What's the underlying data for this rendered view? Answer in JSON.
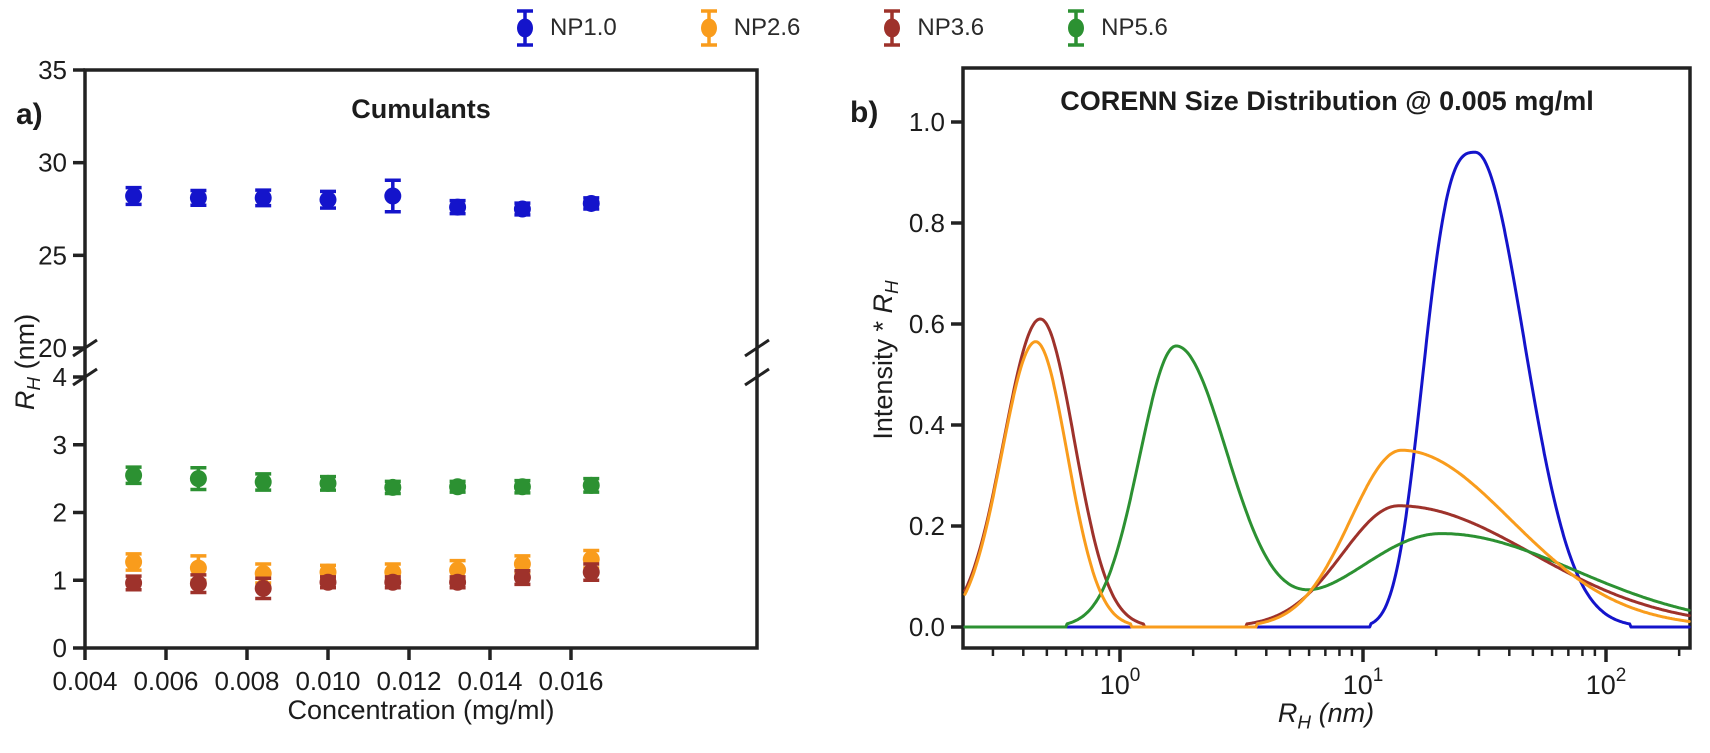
{
  "figure": {
    "panel_a_label": "a)",
    "panel_b_label": "b)",
    "background": "#ffffff",
    "text_color": "#1c1c1c",
    "legend": [
      {
        "label": "NP1.0",
        "color": "#1414cb"
      },
      {
        "label": "NP2.6",
        "color": "#f99c1c"
      },
      {
        "label": "NP3.6",
        "color": "#9e322b"
      },
      {
        "label": "NP5.6",
        "color": "#2c9132"
      }
    ]
  },
  "chart_data": [
    {
      "type": "scatter",
      "title": "Cumulants",
      "xlabel": "Concentration (mg/ml)",
      "ylabel": "R_H (nm)",
      "x_tick_labels": [
        "0.004",
        "0.006",
        "0.008",
        "0.010",
        "0.012",
        "0.014",
        "0.016"
      ],
      "xlim": [
        0.004,
        0.0206
      ],
      "y_axis_break": {
        "upper_range": [
          20,
          35
        ],
        "lower_range": [
          0,
          4
        ],
        "upper_ticks": [
          "20",
          "25",
          "30",
          "35"
        ],
        "lower_ticks": [
          "0",
          "1",
          "2",
          "3",
          "4"
        ]
      },
      "x": [
        0.0052,
        0.0068,
        0.0084,
        0.01,
        0.0116,
        0.0132,
        0.0148,
        0.0165
      ],
      "series": [
        {
          "name": "NP1.0",
          "color": "#1414cb",
          "y": [
            28.2,
            28.1,
            28.1,
            28.0,
            28.2,
            27.6,
            27.5,
            27.8
          ],
          "yerr": [
            0.45,
            0.4,
            0.42,
            0.45,
            0.85,
            0.35,
            0.32,
            0.3
          ]
        },
        {
          "name": "NP2.6",
          "color": "#f99c1c",
          "y": [
            1.27,
            1.18,
            1.1,
            1.12,
            1.12,
            1.15,
            1.24,
            1.31
          ],
          "yerr": [
            0.12,
            0.18,
            0.14,
            0.1,
            0.12,
            0.14,
            0.12,
            0.13
          ]
        },
        {
          "name": "NP3.6",
          "color": "#9e322b",
          "y": [
            0.96,
            0.95,
            0.88,
            0.97,
            0.97,
            0.97,
            1.04,
            1.12
          ],
          "yerr": [
            0.1,
            0.13,
            0.15,
            0.08,
            0.08,
            0.08,
            0.1,
            0.12
          ]
        },
        {
          "name": "NP5.6",
          "color": "#2c9132",
          "y": [
            2.55,
            2.5,
            2.45,
            2.43,
            2.37,
            2.38,
            2.38,
            2.4
          ],
          "yerr": [
            0.12,
            0.16,
            0.12,
            0.1,
            0.09,
            0.08,
            0.09,
            0.1
          ]
        }
      ]
    },
    {
      "type": "line",
      "title": "CORENN Size Distribution @ 0.005 mg/ml",
      "xlabel": "R_H (nm)",
      "ylabel": "Intensity * R_H",
      "x_scale": "log",
      "x_range": [
        0.23,
        220
      ],
      "ylim": [
        0,
        1.04
      ],
      "y_tick_labels": [
        "0.0",
        "0.2",
        "0.4",
        "0.6",
        "0.8",
        "1.0"
      ],
      "x_major_ticks": [
        {
          "value": 1,
          "base": "10",
          "exponent": "0"
        },
        {
          "value": 10,
          "base": "10",
          "exponent": "1"
        },
        {
          "value": 100,
          "base": "10",
          "exponent": "2"
        }
      ],
      "series": [
        {
          "name": "NP1.0",
          "color": "#1414cb",
          "peaks": [
            {
              "center": 29,
              "height": 0.94,
              "sigma_left": 0.2,
              "sigma_right": 0.2,
              "power_left": 3,
              "power_right": 2
            }
          ]
        },
        {
          "name": "NP3.6",
          "color": "#9e322b",
          "peaks": [
            {
              "center": 0.47,
              "height": 0.61,
              "sigma_left": 0.15,
              "sigma_right": 0.14
            },
            {
              "center": 14.0,
              "height": 0.24,
              "sigma_left": 0.23,
              "sigma_right": 0.55
            }
          ]
        },
        {
          "name": "NP5.6",
          "color": "#2c9132",
          "peaks": [
            {
              "center": 1.7,
              "height": 0.555,
              "sigma_left": 0.15,
              "sigma_right": 0.21
            },
            {
              "center": 21.0,
              "height": 0.185,
              "sigma_left": 0.35,
              "sigma_right": 0.55
            }
          ]
        },
        {
          "name": "NP2.6",
          "color": "#f99c1c",
          "peaks": [
            {
              "center": 0.45,
              "height": 0.565,
              "sigma_left": 0.14,
              "sigma_right": 0.13
            },
            {
              "center": 14.4,
              "height": 0.35,
              "sigma_left": 0.21,
              "sigma_right": 0.45
            }
          ]
        }
      ]
    }
  ]
}
